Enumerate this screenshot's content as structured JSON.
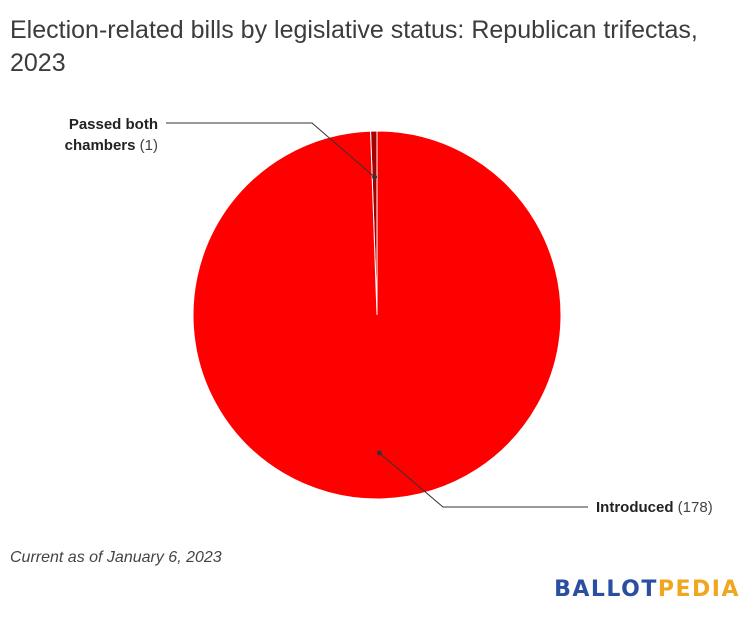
{
  "title": "Election-related bills by legislative status: Republican trifectas, 2023",
  "note": "Current as of January 6, 2023",
  "logo": {
    "part1": "BALLOT",
    "part2": "PEDIA"
  },
  "chart_data": {
    "type": "pie",
    "title": "Election-related bills by legislative status: Republican trifectas, 2023",
    "slices": [
      {
        "label": "Passed both chambers",
        "value": 1,
        "color": "#a50000"
      },
      {
        "label": "Introduced",
        "value": 178,
        "color": "#ff0000"
      }
    ],
    "labels": [
      {
        "lines": [
          "Passed both",
          "chambers"
        ],
        "value_text": "(1)"
      },
      {
        "lines": [
          "Introduced"
        ],
        "value_text": "(178)"
      }
    ]
  }
}
